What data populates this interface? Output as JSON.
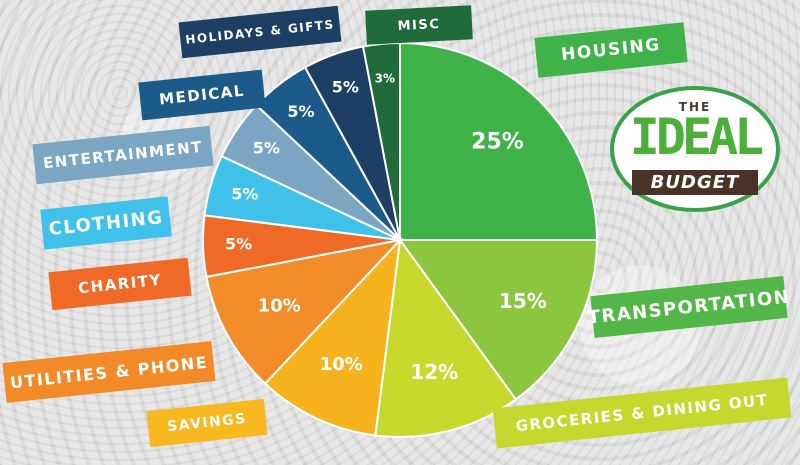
{
  "chart_data": {
    "type": "pie",
    "categories": [
      "Housing",
      "Transportation",
      "Groceries & Dining Out",
      "Savings",
      "Utilities & Phone",
      "Charity",
      "Clothing",
      "Entertainment",
      "Medical",
      "Holidays & Gifts",
      "Misc"
    ],
    "values": [
      25,
      15,
      12,
      10,
      10,
      5,
      5,
      5,
      5,
      5,
      3
    ],
    "value_labels": [
      "25%",
      "15%",
      "12%",
      "10%",
      "10%",
      "5%",
      "5%",
      "5%",
      "5%",
      "5%",
      "3%"
    ],
    "colors": [
      "#3fb34a",
      "#8cc63f",
      "#c7d92c",
      "#f6b31e",
      "#f28c28",
      "#ef6a26",
      "#3fc1ea",
      "#7ba6c3",
      "#1c5a8a",
      "#1c3f63",
      "#1f6b3a"
    ]
  },
  "labels": {
    "housing": "HOUSING",
    "transportation": "TRANSPORTATION",
    "groceries": "GROCERIES & DINING OUT",
    "savings": "SAVINGS",
    "utilities": "UTILITIES & PHONE",
    "charity": "CHARITY",
    "clothing": "CLOTHING",
    "entertainment": "ENTERTAINMENT",
    "medical": "MEDICAL",
    "holidays": "HOLIDAYS & GIFTS",
    "misc": "MISC"
  },
  "badge": {
    "the": "THE",
    "ideal": "IDEAL",
    "budget": "BUDGET",
    "ring_color": "#3aa14a",
    "ideal_color": "#4caf3a",
    "budget_color": "#4a3326"
  }
}
